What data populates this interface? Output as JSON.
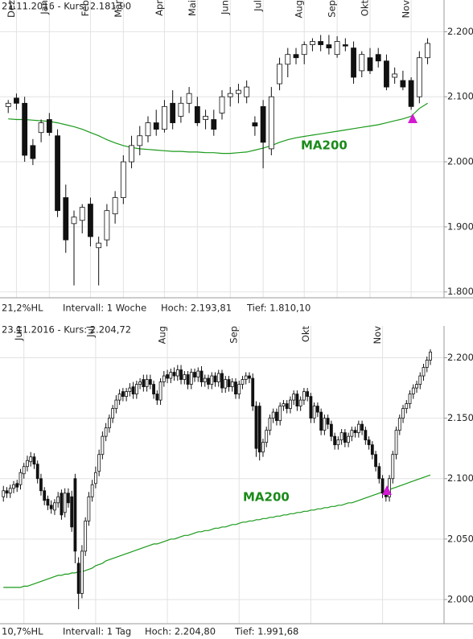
{
  "chart_data": [
    {
      "type": "candlestick",
      "title": "21.11.2016  - Kurs: 2.181,90",
      "footer": [
        "21,2%HL",
        "Intervall: 1 Woche",
        "Hoch:  2.193,81",
        "Tief:  1.810,10"
      ],
      "xlim": [
        -1,
        53
      ],
      "xticks": [
        {
          "value": 1,
          "label": "Dez"
        },
        {
          "value": 5,
          "label": "Jan"
        },
        {
          "value": 10,
          "label": "Feb"
        },
        {
          "value": 14,
          "label": "Mär"
        },
        {
          "value": 19,
          "label": "Apr"
        },
        {
          "value": 23,
          "label": "Mai"
        },
        {
          "value": 27,
          "label": "Jun"
        },
        {
          "value": 31,
          "label": "Jul"
        },
        {
          "value": 36,
          "label": "Aug"
        },
        {
          "value": 40,
          "label": "Sep"
        },
        {
          "value": 44,
          "label": "Okt"
        },
        {
          "value": 49,
          "label": "Nov"
        }
      ],
      "ylim": [
        1791,
        2224
      ],
      "yticks": [
        {
          "value": 1800,
          "label": "1.800"
        },
        {
          "value": 1900,
          "label": "1.900"
        },
        {
          "value": 2000,
          "label": "2.000"
        },
        {
          "value": 2100,
          "label": "2.100"
        },
        {
          "value": 2200,
          "label": "2.200"
        }
      ],
      "grid": true,
      "open": [
        2085,
        2098,
        2090,
        2025,
        2045,
        2065,
        2040,
        1945,
        1905,
        1910,
        1935,
        1868,
        1880,
        1920,
        1945,
        2000,
        2025,
        2040,
        2060,
        2050,
        2090,
        2070,
        2090,
        2085,
        2065,
        2065,
        2075,
        2100,
        2105,
        2100,
        2060,
        2085,
        2020,
        2120,
        2150,
        2165,
        2165,
        2180,
        2185,
        2180,
        2165,
        2180,
        2175,
        2140,
        2160,
        2165,
        2155,
        2130,
        2125,
        2125,
        2100,
        2160
      ],
      "high": [
        2095,
        2105,
        2100,
        2035,
        2065,
        2075,
        2050,
        1965,
        1925,
        1935,
        1945,
        1885,
        1935,
        1955,
        2010,
        2040,
        2055,
        2070,
        2080,
        2095,
        2110,
        2100,
        2115,
        2100,
        2080,
        2080,
        2110,
        2115,
        2120,
        2125,
        2070,
        2095,
        2115,
        2160,
        2175,
        2175,
        2185,
        2190,
        2195,
        2195,
        2193,
        2190,
        2185,
        2170,
        2175,
        2175,
        2165,
        2145,
        2140,
        2130,
        2170,
        2190
      ],
      "low": [
        2075,
        2080,
        2000,
        1995,
        2030,
        2040,
        1915,
        1860,
        1810,
        1890,
        1870,
        1810,
        1870,
        1905,
        1935,
        1990,
        2010,
        2030,
        2040,
        2045,
        2050,
        2060,
        2075,
        2055,
        2050,
        2040,
        2065,
        2085,
        2090,
        2090,
        2040,
        1990,
        2010,
        2110,
        2130,
        2150,
        2150,
        2170,
        2170,
        2165,
        2160,
        2170,
        2120,
        2130,
        2135,
        2145,
        2110,
        2120,
        2110,
        2080,
        2090,
        2150
      ],
      "close": [
        2090,
        2090,
        2010,
        2005,
        2060,
        2045,
        1925,
        1880,
        1915,
        1930,
        1885,
        1875,
        1925,
        1945,
        2000,
        2025,
        2040,
        2060,
        2050,
        2085,
        2060,
        2090,
        2105,
        2060,
        2070,
        2050,
        2100,
        2105,
        2110,
        2115,
        2055,
        2030,
        2100,
        2150,
        2165,
        2160,
        2180,
        2185,
        2180,
        2175,
        2185,
        2178,
        2130,
        2165,
        2140,
        2155,
        2115,
        2135,
        2115,
        2085,
        2160,
        2182
      ],
      "ma": {
        "name": "MA200",
        "color": "#1a9a1a",
        "values": [
          2066,
          2065,
          2065,
          2064,
          2063,
          2062,
          2060,
          2057,
          2054,
          2050,
          2045,
          2040,
          2034,
          2029,
          2025,
          2022,
          2020,
          2019,
          2018,
          2017,
          2016,
          2016,
          2015,
          2015,
          2014,
          2014,
          2013,
          2013,
          2014,
          2015,
          2018,
          2021,
          2025,
          2030,
          2034,
          2037,
          2039,
          2041,
          2043,
          2045,
          2047,
          2049,
          2051,
          2053,
          2055,
          2057,
          2060,
          2063,
          2066,
          2070,
          2082,
          2090
        ]
      }
    },
    {
      "type": "candlestick",
      "title": "23.11.2016  - Kurs: 2.204,72",
      "footer": [
        "10,7%HL",
        "Intervall: 1 Tag",
        "Hoch:  2.204,80",
        "Tief:  1.991,68"
      ],
      "xlim": [
        -1,
        129
      ],
      "xticks": [
        {
          "value": 6,
          "label": "Jun"
        },
        {
          "value": 27,
          "label": "Jul"
        },
        {
          "value": 48,
          "label": "Aug"
        },
        {
          "value": 69,
          "label": "Sep"
        },
        {
          "value": 90,
          "label": "Okt"
        },
        {
          "value": 111,
          "label": "Nov"
        }
      ],
      "ylim": [
        1980,
        2213
      ],
      "yticks": [
        {
          "value": 2000,
          "label": "2.000"
        },
        {
          "value": 2050,
          "label": "2.050"
        },
        {
          "value": 2100,
          "label": "2.100"
        },
        {
          "value": 2150,
          "label": "2.150"
        },
        {
          "value": 2200,
          "label": "2.200"
        }
      ],
      "grid": true,
      "open": [
        2085,
        2090,
        2088,
        2092,
        2096,
        2095,
        2104,
        2110,
        2114,
        2118,
        2112,
        2100,
        2090,
        2083,
        2078,
        2074,
        2080,
        2088,
        2072,
        2088,
        2085,
        2100,
        2030,
        2005,
        2040,
        2065,
        2085,
        2096,
        2106,
        2120,
        2135,
        2142,
        2150,
        2158,
        2165,
        2172,
        2168,
        2172,
        2176,
        2170,
        2178,
        2182,
        2176,
        2182,
        2178,
        2170,
        2165,
        2180,
        2186,
        2183,
        2188,
        2185,
        2190,
        2182,
        2186,
        2178,
        2188,
        2184,
        2189,
        2180,
        2183,
        2178,
        2185,
        2180,
        2187,
        2175,
        2182,
        2176,
        2180,
        2170,
        2178,
        2182,
        2185,
        2183,
        2160,
        2160,
        2122,
        2130,
        2140,
        2150,
        2155,
        2148,
        2160,
        2162,
        2158,
        2165,
        2170,
        2160,
        2165,
        2172,
        2168,
        2150,
        2160,
        2155,
        2140,
        2150,
        2145,
        2135,
        2128,
        2132,
        2138,
        2130,
        2135,
        2140,
        2138,
        2145,
        2140,
        2132,
        2128,
        2120,
        2110,
        2100,
        2088,
        2085,
        2100,
        2120,
        2140,
        2150,
        2158,
        2162,
        2170,
        2175,
        2178,
        2185,
        2192,
        2198
      ],
      "high": [
        2094,
        2093,
        2095,
        2098,
        2099,
        2108,
        2113,
        2119,
        2122,
        2121,
        2115,
        2104,
        2093,
        2086,
        2082,
        2083,
        2089,
        2091,
        2092,
        2092,
        2090,
        2104,
        2035,
        2045,
        2068,
        2089,
        2099,
        2110,
        2124,
        2139,
        2146,
        2153,
        2161,
        2169,
        2174,
        2175,
        2175,
        2179,
        2180,
        2181,
        2183,
        2186,
        2186,
        2186,
        2181,
        2173,
        2183,
        2189,
        2190,
        2191,
        2192,
        2194,
        2194,
        2189,
        2189,
        2191,
        2191,
        2192,
        2193,
        2186,
        2186,
        2188,
        2188,
        2190,
        2190,
        2185,
        2185,
        2183,
        2183,
        2181,
        2185,
        2188,
        2188,
        2187,
        2164,
        2163,
        2133,
        2143,
        2153,
        2158,
        2158,
        2163,
        2165,
        2165,
        2168,
        2173,
        2173,
        2168,
        2175,
        2175,
        2171,
        2163,
        2163,
        2158,
        2153,
        2153,
        2148,
        2138,
        2135,
        2141,
        2141,
        2138,
        2143,
        2143,
        2148,
        2148,
        2143,
        2135,
        2131,
        2123,
        2113,
        2103,
        2091,
        2103,
        2123,
        2143,
        2153,
        2161,
        2165,
        2173,
        2178,
        2181,
        2188,
        2195,
        2201,
        2207
      ],
      "low": [
        2081,
        2084,
        2084,
        2088,
        2089,
        2091,
        2100,
        2106,
        2110,
        2108,
        2096,
        2086,
        2078,
        2074,
        2071,
        2070,
        2076,
        2066,
        2068,
        2076,
        2056,
        2030,
        1992,
        2001,
        2036,
        2061,
        2081,
        2092,
        2102,
        2116,
        2131,
        2138,
        2146,
        2154,
        2161,
        2164,
        2164,
        2168,
        2166,
        2166,
        2174,
        2172,
        2172,
        2174,
        2166,
        2161,
        2161,
        2176,
        2179,
        2179,
        2181,
        2181,
        2178,
        2178,
        2174,
        2174,
        2180,
        2180,
        2176,
        2176,
        2174,
        2174,
        2176,
        2176,
        2171,
        2171,
        2172,
        2172,
        2166,
        2166,
        2174,
        2178,
        2179,
        2156,
        2118,
        2115,
        2118,
        2126,
        2136,
        2146,
        2144,
        2144,
        2156,
        2154,
        2154,
        2161,
        2156,
        2156,
        2161,
        2164,
        2146,
        2146,
        2151,
        2136,
        2136,
        2141,
        2131,
        2124,
        2124,
        2128,
        2126,
        2126,
        2131,
        2134,
        2134,
        2136,
        2128,
        2124,
        2116,
        2106,
        2096,
        2084,
        2081,
        2081,
        2096,
        2116,
        2136,
        2146,
        2154,
        2158,
        2166,
        2171,
        2174,
        2181,
        2188,
        2194
      ],
      "close": [
        2090,
        2088,
        2092,
        2095,
        2093,
        2105,
        2110,
        2115,
        2118,
        2112,
        2100,
        2090,
        2082,
        2078,
        2075,
        2080,
        2085,
        2070,
        2088,
        2080,
        2060,
        2040,
        2005,
        2040,
        2065,
        2085,
        2095,
        2105,
        2120,
        2135,
        2142,
        2150,
        2158,
        2165,
        2170,
        2168,
        2172,
        2175,
        2170,
        2178,
        2180,
        2176,
        2182,
        2178,
        2170,
        2165,
        2180,
        2185,
        2183,
        2188,
        2185,
        2190,
        2182,
        2186,
        2178,
        2188,
        2184,
        2189,
        2180,
        2183,
        2178,
        2185,
        2180,
        2187,
        2175,
        2182,
        2176,
        2180,
        2170,
        2178,
        2182,
        2185,
        2183,
        2160,
        2125,
        2122,
        2130,
        2140,
        2150,
        2155,
        2148,
        2160,
        2162,
        2158,
        2165,
        2170,
        2160,
        2165,
        2172,
        2168,
        2150,
        2160,
        2155,
        2140,
        2150,
        2145,
        2135,
        2128,
        2132,
        2138,
        2130,
        2135,
        2140,
        2138,
        2145,
        2140,
        2132,
        2128,
        2120,
        2110,
        2100,
        2088,
        2085,
        2100,
        2120,
        2140,
        2150,
        2158,
        2162,
        2170,
        2175,
        2178,
        2185,
        2192,
        2198,
        2204.72
      ],
      "ma": {
        "name": "MA200",
        "color": "#1a9a1a",
        "values": [
          2010,
          2010,
          2010,
          2010,
          2010,
          2010,
          2011,
          2011,
          2012,
          2013,
          2014,
          2015,
          2016,
          2017,
          2018,
          2019,
          2020,
          2020,
          2021,
          2021,
          2022,
          2022,
          2023,
          2023,
          2024,
          2025,
          2026,
          2028,
          2029,
          2030,
          2032,
          2033,
          2034,
          2035,
          2036,
          2037,
          2038,
          2039,
          2040,
          2041,
          2042,
          2043,
          2044,
          2045,
          2046,
          2046,
          2047,
          2048,
          2049,
          2050,
          2050,
          2051,
          2052,
          2053,
          2053,
          2054,
          2055,
          2056,
          2056,
          2057,
          2057,
          2058,
          2059,
          2059,
          2060,
          2060,
          2061,
          2062,
          2062,
          2063,
          2064,
          2064,
          2065,
          2065,
          2066,
          2066,
          2067,
          2067,
          2068,
          2068,
          2069,
          2069,
          2070,
          2070,
          2071,
          2071,
          2072,
          2072,
          2073,
          2073,
          2074,
          2074,
          2075,
          2075,
          2076,
          2076,
          2077,
          2077,
          2078,
          2078,
          2079,
          2080,
          2080,
          2081,
          2082,
          2083,
          2084,
          2085,
          2086,
          2087,
          2088,
          2089,
          2090,
          2091,
          2092,
          2093,
          2094,
          2095,
          2096,
          2097,
          2098,
          2099,
          2100,
          2101,
          2102,
          2103
        ]
      }
    }
  ]
}
